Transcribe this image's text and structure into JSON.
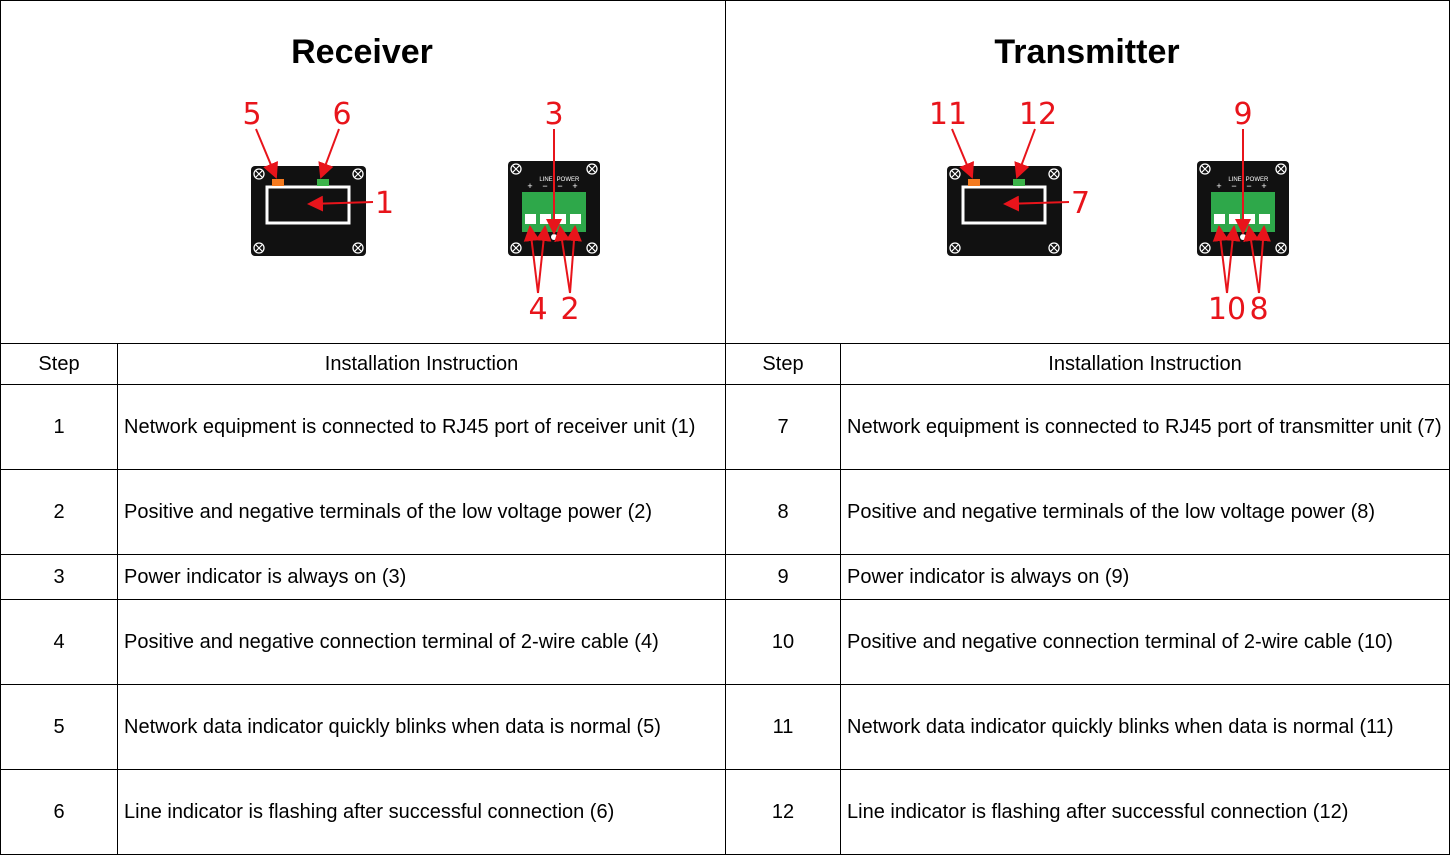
{
  "receiver": {
    "title": "Receiver",
    "callouts": [
      "5",
      "6",
      "1",
      "3",
      "4",
      "2"
    ]
  },
  "transmitter": {
    "title": "Transmitter",
    "callouts": [
      "11",
      "12",
      "7",
      "9",
      "10",
      "8"
    ]
  },
  "device_text": {
    "line": "LINE",
    "power": "POWER",
    "polarity": [
      "+",
      "−",
      "−",
      "+"
    ]
  },
  "table": {
    "header": [
      "Step",
      "Installation Instruction",
      "Step",
      "Installation Instruction"
    ],
    "rows": [
      [
        "1",
        "Network equipment is connected to RJ45 port of receiver unit (1)",
        "7",
        "Network equipment is connected to RJ45 port of transmitter unit (7)"
      ],
      [
        "2",
        "Positive and negative terminals of the low voltage power (2)",
        "8",
        "Positive and negative terminals of the low voltage power (8)"
      ],
      [
        "3",
        "Power indicator is always on (3)",
        "9",
        "Power indicator is always on (9)"
      ],
      [
        "4",
        "Positive and negative connection terminal of 2-wire cable (4)",
        "10",
        "Positive and negative connection terminal of 2-wire cable (10)"
      ],
      [
        "5",
        "Network data indicator quickly blinks when data is normal (5)",
        "11",
        "Network data indicator quickly blinks when data is normal (11)"
      ],
      [
        "6",
        "Line indicator is flashing after successful connection (6)",
        "12",
        "Line indicator is flashing after successful connection (12)"
      ]
    ]
  }
}
